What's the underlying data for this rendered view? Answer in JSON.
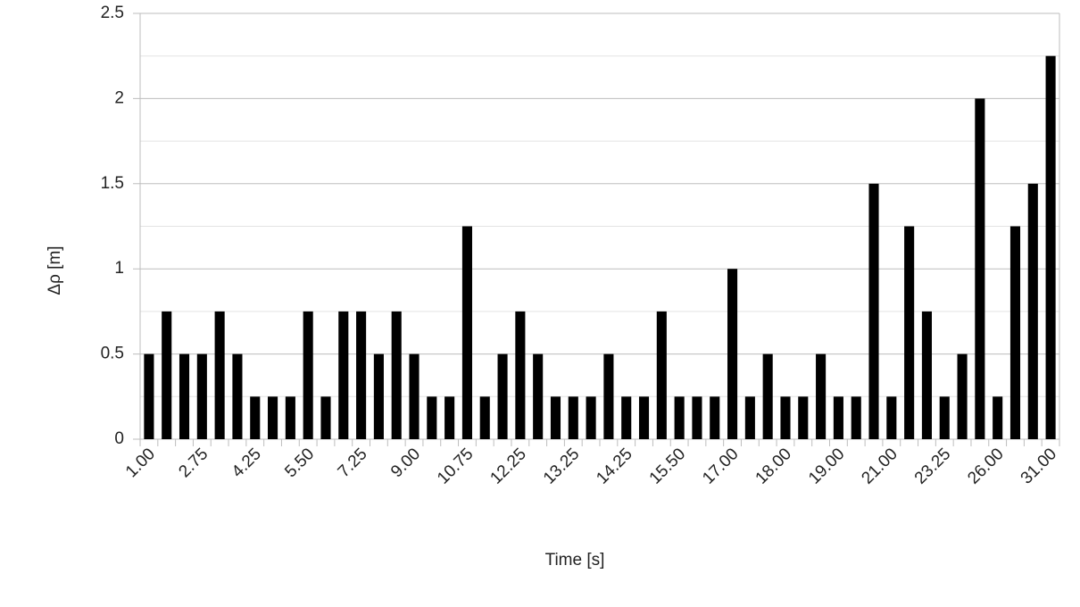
{
  "chart_data": {
    "type": "bar",
    "x_label": "Time [s]",
    "y_label": "Δρ [m]",
    "categories": [
      "1.00",
      null,
      null,
      "2.75",
      null,
      null,
      "4.25",
      null,
      null,
      "5.50",
      null,
      null,
      "7.25",
      null,
      null,
      "9.00",
      null,
      null,
      "10.75",
      null,
      null,
      "12.25",
      null,
      null,
      "13.25",
      null,
      null,
      "14.25",
      null,
      null,
      "15.50",
      null,
      null,
      "17.00",
      null,
      null,
      "18.00",
      null,
      null,
      "19.00",
      null,
      null,
      "21.00",
      null,
      null,
      "23.25",
      null,
      null,
      "26.00",
      null,
      null,
      "31.00"
    ],
    "values": [
      0.5,
      0.75,
      0.5,
      0.5,
      0.75,
      0.5,
      0.25,
      0.25,
      0.25,
      0.75,
      0.25,
      0.75,
      0.75,
      0.5,
      0.75,
      0.5,
      0.25,
      0.25,
      1.25,
      0.25,
      0.5,
      0.75,
      0.5,
      0.25,
      0.25,
      0.25,
      0.5,
      0.25,
      0.25,
      0.75,
      0.25,
      0.25,
      0.25,
      1.0,
      0.25,
      0.5,
      0.25,
      0.25,
      0.5,
      0.25,
      0.25,
      1.5,
      0.25,
      1.25,
      0.75,
      0.25,
      0.5,
      2.0,
      0.25,
      1.25,
      1.5,
      2.25
    ],
    "color": "#000000",
    "ylim": [
      0,
      2.5
    ],
    "yticks": [
      0,
      0.5,
      1,
      1.5,
      2,
      2.5
    ],
    "minor_yticks": [
      0.25,
      0.75,
      1.25,
      1.75,
      2.25
    ],
    "grid": true
  }
}
